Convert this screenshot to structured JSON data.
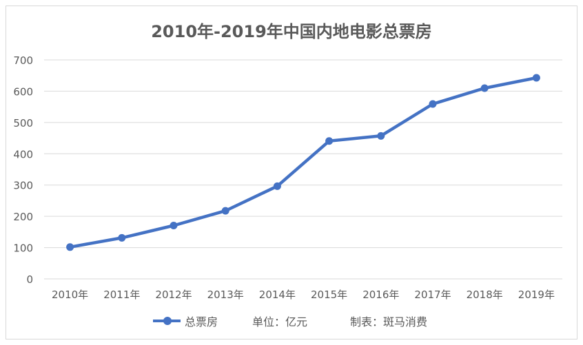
{
  "chart_data": {
    "type": "line",
    "title": "2010年-2019年中国内地电影总票房",
    "categories": [
      "2010年",
      "2011年",
      "2012年",
      "2013年",
      "2014年",
      "2015年",
      "2016年",
      "2017年",
      "2018年",
      "2019年"
    ],
    "series": [
      {
        "name": "总票房",
        "values": [
          101.7,
          131.2,
          170.7,
          217.7,
          296.4,
          440.7,
          457.1,
          559.1,
          609.8,
          642.7
        ],
        "color": "#4472c4"
      }
    ],
    "ylim": [
      0,
      700
    ],
    "yticks": [
      0,
      100,
      200,
      300,
      400,
      500,
      600,
      700
    ],
    "grid": true,
    "legend": "bottom",
    "notes": [
      "单位：亿元",
      "制表：斑马消费"
    ]
  }
}
